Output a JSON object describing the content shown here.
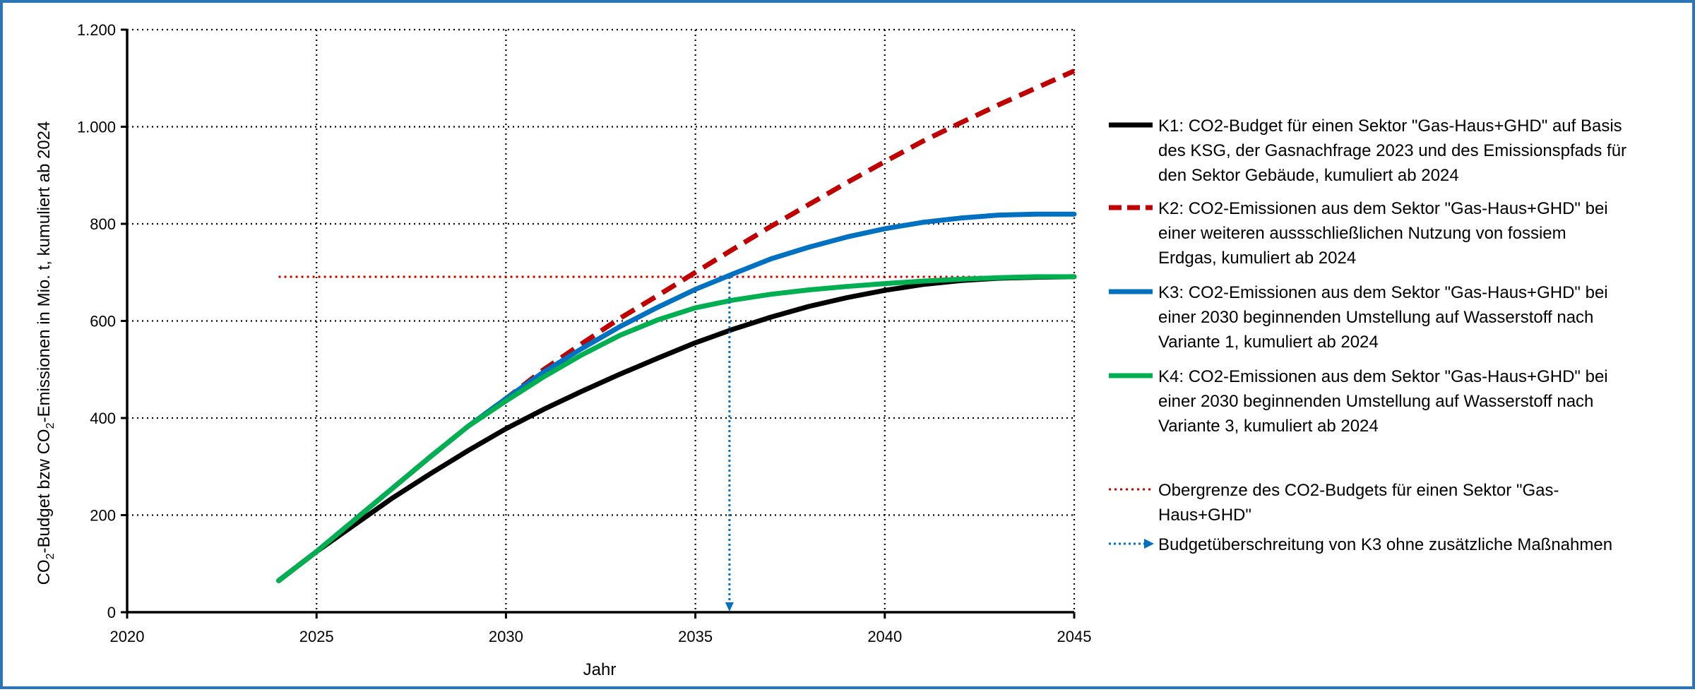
{
  "chart_data": {
    "type": "line",
    "xlabel": "Jahr",
    "ylabel_parts": [
      "CO",
      "2",
      "-Budget bzw CO",
      "2",
      "-Emissionen in Mio. t, kumuliert ab 2024"
    ],
    "xlim": [
      2020,
      2045
    ],
    "ylim": [
      0,
      1200
    ],
    "x_ticks": [
      2020,
      2025,
      2030,
      2035,
      2040,
      2045
    ],
    "x_tick_labels": [
      "2020",
      "2025",
      "2030",
      "2035",
      "2040",
      "2045"
    ],
    "y_ticks": [
      0,
      200,
      400,
      600,
      800,
      1000,
      1200
    ],
    "y_tick_labels": [
      "0",
      "200",
      "400",
      "600",
      "800",
      "1.000",
      "1.200"
    ],
    "grid": true,
    "legend_position": "right",
    "series": [
      {
        "name": "K1: CO2-Budget für einen Sektor \"Gas-Haus+GHD\" auf Basis des KSG, der Gasnachfrage 2023 und des Emissionspfads für den Sektor Gebäude, kumuliert ab 2024",
        "legend_lines": [
          "K1: CO2-Budget für einen Sektor \"Gas-Haus+GHD\" auf Basis",
          "des KSG, der Gasnachfrage 2023 und des Emissionspfads für",
          "den Sektor Gebäude, kumuliert ab 2024"
        ],
        "color": "#000000",
        "style": "solid",
        "x": [
          2024,
          2025,
          2026,
          2027,
          2028,
          2029,
          2030,
          2031,
          2032,
          2033,
          2034,
          2035,
          2036,
          2037,
          2038,
          2039,
          2040,
          2041,
          2042,
          2043,
          2044,
          2045
        ],
        "y": [
          65,
          125,
          180,
          235,
          285,
          333,
          378,
          418,
          455,
          490,
          523,
          555,
          583,
          608,
          630,
          648,
          663,
          675,
          683,
          688,
          690,
          691
        ]
      },
      {
        "name": "K2: CO2-Emissionen aus dem Sektor \"Gas-Haus+GHD\" bei einer weiteren aussschließlichen Nutzung von fossiem Erdgas, kumuliert ab 2024",
        "legend_lines": [
          "K2: CO2-Emissionen aus dem Sektor \"Gas-Haus+GHD\" bei",
          "einer weiteren aussschließlichen Nutzung von fossiem",
          "Erdgas, kumuliert ab 2024"
        ],
        "color": "#c00000",
        "style": "dashed",
        "x": [
          2024,
          2025,
          2026,
          2027,
          2028,
          2029,
          2030,
          2031,
          2032,
          2033,
          2034,
          2035,
          2036,
          2037,
          2038,
          2039,
          2040,
          2041,
          2042,
          2043,
          2044,
          2045
        ],
        "y": [
          65,
          125,
          190,
          255,
          320,
          383,
          440,
          500,
          553,
          605,
          652,
          700,
          748,
          795,
          840,
          885,
          928,
          970,
          1008,
          1045,
          1080,
          1115
        ]
      },
      {
        "name": "K3: CO2-Emissionen aus dem Sektor \"Gas-Haus+GHD\" bei einer 2030 beginnenden Umstellung auf Wasserstoff nach Variante 1, kumuliert ab 2024",
        "legend_lines": [
          "K3: CO2-Emissionen aus dem Sektor \"Gas-Haus+GHD\" bei",
          "einer 2030 beginnenden Umstellung auf Wasserstoff nach",
          "Variante 1, kumuliert ab 2024"
        ],
        "color": "#0070c0",
        "style": "solid",
        "x": [
          2024,
          2025,
          2026,
          2027,
          2028,
          2029,
          2030,
          2031,
          2032,
          2033,
          2034,
          2035,
          2036,
          2037,
          2038,
          2039,
          2040,
          2041,
          2042,
          2043,
          2044,
          2045
        ],
        "y": [
          65,
          125,
          190,
          255,
          320,
          383,
          440,
          495,
          543,
          588,
          628,
          665,
          697,
          728,
          752,
          773,
          790,
          803,
          812,
          818,
          820,
          820
        ]
      },
      {
        "name": "K4: CO2-Emissionen aus dem Sektor \"Gas-Haus+GHD\" bei einer 2030 beginnenden Umstellung auf Wasserstoff nach Variante 3, kumuliert ab 2024",
        "legend_lines": [
          "K4: CO2-Emissionen aus dem Sektor \"Gas-Haus+GHD\" bei",
          "einer 2030 beginnenden Umstellung auf Wasserstoff nach",
          "Variante 3, kumuliert ab 2024"
        ],
        "color": "#00b050",
        "style": "solid",
        "x": [
          2024,
          2025,
          2026,
          2027,
          2028,
          2029,
          2030,
          2031,
          2032,
          2033,
          2034,
          2035,
          2036,
          2037,
          2038,
          2039,
          2040,
          2041,
          2042,
          2043,
          2044,
          2045
        ],
        "y": [
          65,
          125,
          190,
          255,
          320,
          383,
          435,
          485,
          530,
          570,
          602,
          627,
          643,
          655,
          664,
          671,
          677,
          682,
          686,
          689,
          691,
          691
        ]
      }
    ],
    "budget_limit": {
      "name": "Obergrenze des CO2-Budgets für einen Sektor \"Gas-Haus+GHD\"",
      "legend_lines": [
        "Obergrenze des CO2-Budgets für einen Sektor \"Gas-",
        "Haus+GHD\""
      ],
      "color": "#c00000",
      "style": "dotted",
      "x_range": [
        2024,
        2045
      ],
      "value": 691
    },
    "exceedance_marker": {
      "name": "Budgetüberschreitung von K3 ohne zusätzliche Maßnahmen",
      "legend_lines": [
        "Budgetüberschreitung von K3 ohne zusätzliche Maßnahmen"
      ],
      "color": "#0070c0",
      "style": "dotted-arrow",
      "x": 2035.9,
      "y_from": 691,
      "y_to": 0
    }
  },
  "colors": {
    "frame_border": "#2e75b6",
    "grid": "#000000",
    "axis": "#000000"
  }
}
